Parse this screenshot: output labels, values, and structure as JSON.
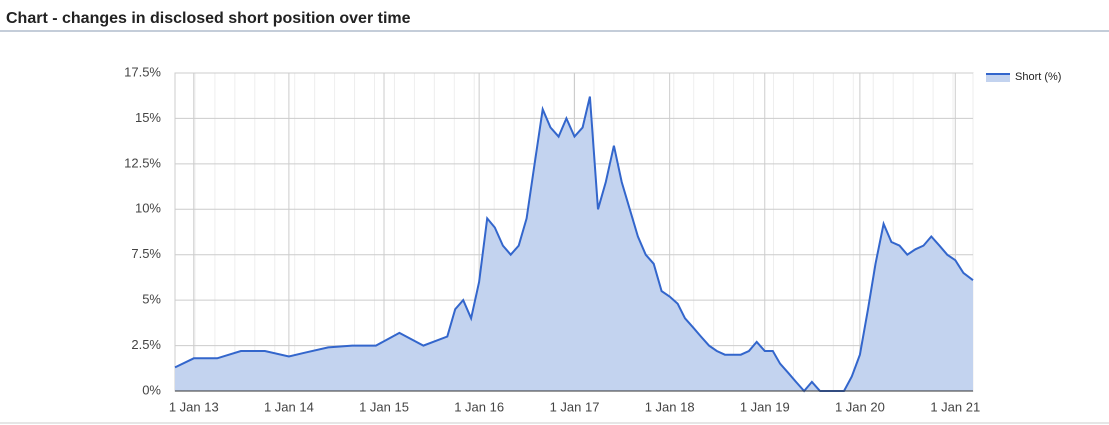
{
  "chart_data": {
    "type": "area",
    "title": "Chart - changes in disclosed short position over time",
    "legend": "top-right",
    "grid": true,
    "x": [
      "2012-10-21",
      "2013-01-01",
      "2013-04-01",
      "2013-07-01",
      "2013-10-01",
      "2014-01-01",
      "2014-03-01",
      "2014-06-01",
      "2014-09-01",
      "2014-12-01",
      "2015-03-01",
      "2015-06-01",
      "2015-09-01",
      "2015-10-01",
      "2015-11-01",
      "2015-12-01",
      "2016-01-01",
      "2016-02-01",
      "2016-03-01",
      "2016-04-01",
      "2016-05-01",
      "2016-06-01",
      "2016-07-01",
      "2016-08-01",
      "2016-09-01",
      "2016-10-01",
      "2016-11-01",
      "2016-12-01",
      "2017-01-01",
      "2017-02-01",
      "2017-03-01",
      "2017-04-01",
      "2017-05-01",
      "2017-06-01",
      "2017-07-01",
      "2017-08-01",
      "2017-09-01",
      "2017-10-01",
      "2017-11-01",
      "2017-12-01",
      "2018-01-01",
      "2018-02-01",
      "2018-03-01",
      "2018-04-01",
      "2018-05-01",
      "2018-06-01",
      "2018-07-01",
      "2018-08-01",
      "2018-09-01",
      "2018-10-01",
      "2018-11-01",
      "2018-12-01",
      "2019-01-01",
      "2019-02-01",
      "2019-03-01",
      "2019-04-01",
      "2019-05-01",
      "2019-06-01",
      "2019-07-01",
      "2019-08-01",
      "2019-09-01",
      "2019-10-01",
      "2019-11-01",
      "2019-12-01",
      "2020-01-01",
      "2020-02-01",
      "2020-03-01",
      "2020-04-01",
      "2020-05-01",
      "2020-06-01",
      "2020-07-01",
      "2020-08-01",
      "2020-09-01",
      "2020-10-01",
      "2020-11-01",
      "2020-12-01",
      "2021-01-01",
      "2021-02-01",
      "2021-03-10"
    ],
    "series": [
      {
        "name": "Short (%)",
        "color": "#3366cc",
        "fill": "#c3d3ef",
        "values": [
          1.3,
          1.8,
          1.8,
          2.2,
          2.2,
          1.9,
          2.1,
          2.4,
          2.5,
          2.5,
          3.2,
          2.5,
          3.0,
          4.5,
          5.0,
          4.0,
          6.0,
          9.5,
          9.0,
          8.0,
          7.5,
          8.0,
          9.5,
          12.5,
          15.5,
          14.5,
          14.0,
          15.0,
          14.0,
          14.5,
          16.2,
          10.0,
          11.5,
          13.5,
          11.5,
          10.0,
          8.5,
          7.5,
          7.0,
          5.5,
          5.2,
          4.8,
          4.0,
          3.5,
          3.0,
          2.5,
          2.2,
          2.0,
          2.0,
          2.0,
          2.2,
          2.7,
          2.2,
          2.2,
          1.5,
          1.0,
          0.5,
          0,
          0.5,
          0,
          0,
          0,
          0,
          0.8,
          2.0,
          4.5,
          7.0,
          9.2,
          8.2,
          8.0,
          7.5,
          7.8,
          8.0,
          8.5,
          8.0,
          7.5,
          7.2,
          6.5,
          6.1
        ]
      }
    ],
    "xlim": [
      "2012-10-21",
      "2021-03-10"
    ],
    "xticks": [
      {
        "value": "2013-01-01",
        "label": "1 Jan 13"
      },
      {
        "value": "2014-01-01",
        "label": "1 Jan 14"
      },
      {
        "value": "2015-01-01",
        "label": "1 Jan 15"
      },
      {
        "value": "2016-01-01",
        "label": "1 Jan 16"
      },
      {
        "value": "2017-01-01",
        "label": "1 Jan 17"
      },
      {
        "value": "2018-01-01",
        "label": "1 Jan 18"
      },
      {
        "value": "2019-01-01",
        "label": "1 Jan 19"
      },
      {
        "value": "2020-01-01",
        "label": "1 Jan 20"
      },
      {
        "value": "2021-01-01",
        "label": "1 Jan 21"
      }
    ],
    "ylim": [
      0,
      17.5
    ],
    "yticks": [
      {
        "value": 0,
        "label": "0%"
      },
      {
        "value": 2.5,
        "label": "2.5%"
      },
      {
        "value": 5,
        "label": "5%"
      },
      {
        "value": 7.5,
        "label": "7.5%"
      },
      {
        "value": 10,
        "label": "10%"
      },
      {
        "value": 12.5,
        "label": "12.5%"
      },
      {
        "value": 15,
        "label": "15%"
      },
      {
        "value": 17.5,
        "label": "17.5%"
      }
    ]
  }
}
